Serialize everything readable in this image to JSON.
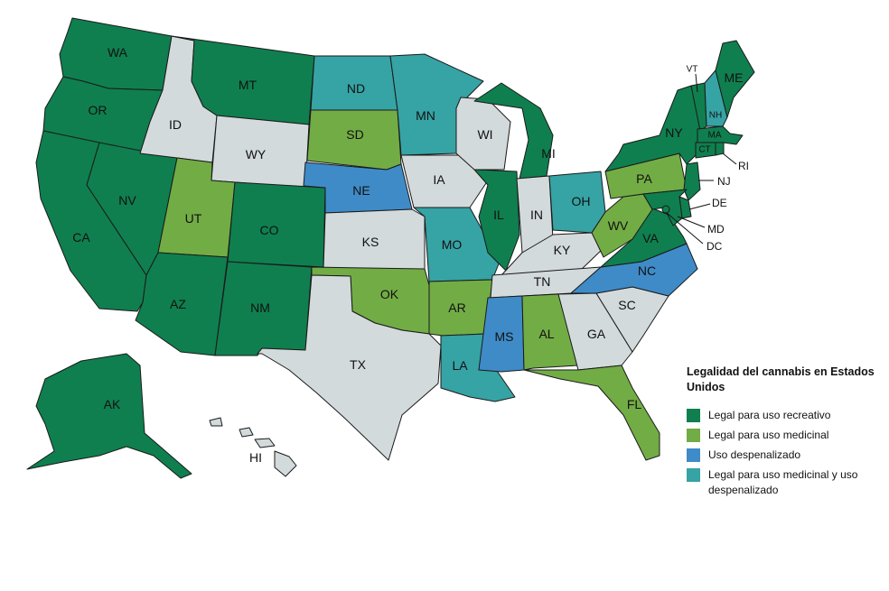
{
  "legend": {
    "title": "Legalidad del cannabis en Estados Unidos",
    "items": [
      {
        "key": "rec",
        "label": "Legal para uso recreativo",
        "color": "#0f7f4f"
      },
      {
        "key": "med",
        "label": "Legal para uso medicinal",
        "color": "#72ac45"
      },
      {
        "key": "dec",
        "label": "Uso despenalizado",
        "color": "#3f8bc8"
      },
      {
        "key": "meddec",
        "label": "Legal para uso medicinal y uso despenalizado",
        "color": "#36a3a5"
      }
    ]
  },
  "colors": {
    "none": "#d3dadc",
    "border": "#1a1a1a"
  },
  "states": {
    "WA": "rec",
    "OR": "rec",
    "CA": "rec",
    "NV": "rec",
    "ID": "none",
    "MT": "rec",
    "WY": "none",
    "UT": "med",
    "CO": "rec",
    "AZ": "rec",
    "NM": "rec",
    "ND": "meddec",
    "SD": "med",
    "NE": "dec",
    "KS": "none",
    "OK": "med",
    "TX": "none",
    "MN": "meddec",
    "IA": "none",
    "MO": "meddec",
    "AR": "med",
    "LA": "meddec",
    "WI": "none",
    "IL": "rec",
    "MI": "rec",
    "IN": "none",
    "OH": "meddec",
    "KY": "none",
    "TN": "none",
    "MS": "dec",
    "AL": "med",
    "GA": "none",
    "FL": "med",
    "SC": "none",
    "NC": "dec",
    "VA": "rec",
    "WV": "med",
    "PA": "med",
    "NY": "rec",
    "VT": "rec",
    "NH": "meddec",
    "ME": "rec",
    "MA": "rec",
    "RI": "rec",
    "CT": "rec",
    "NJ": "rec",
    "DE": "rec",
    "MD": "rec",
    "DC": "rec",
    "AK": "rec",
    "HI": "none"
  }
}
